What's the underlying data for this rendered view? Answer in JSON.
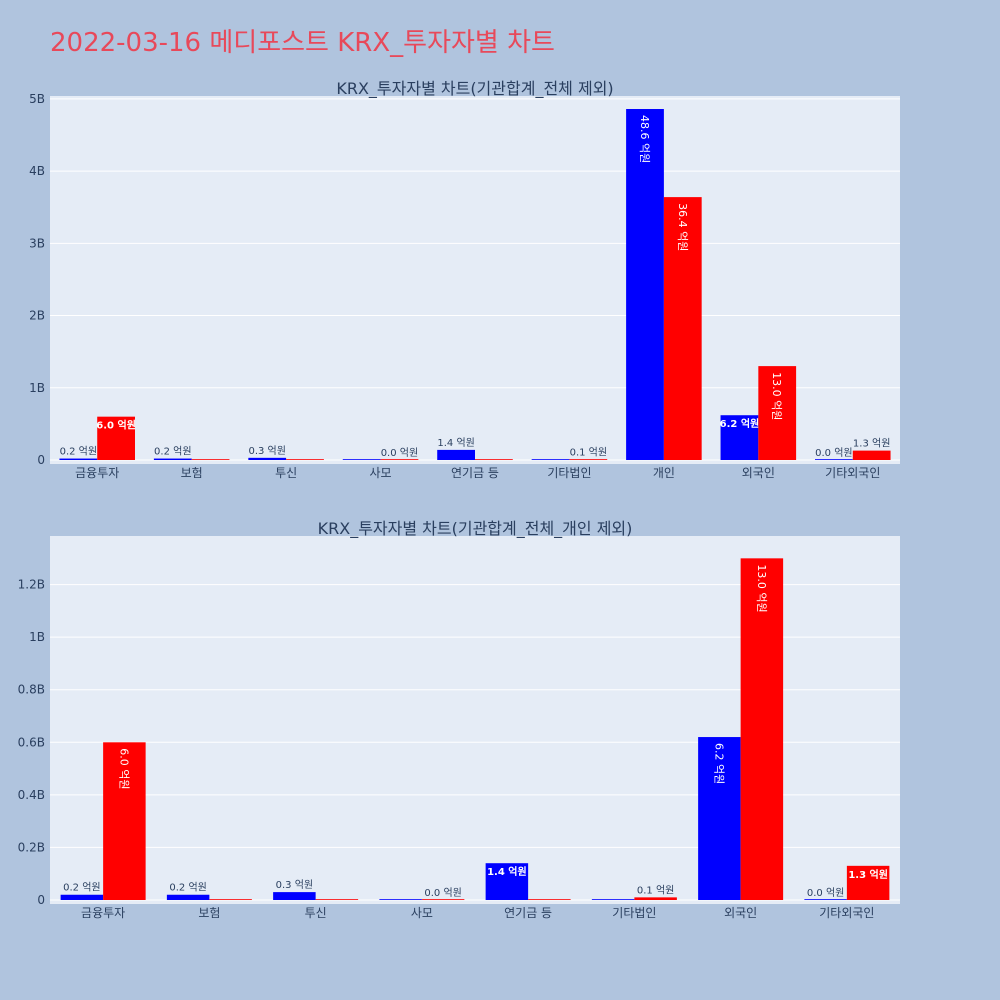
{
  "page": {
    "title": "2022-03-16 메디포스트 KRX_투자자별 차트"
  },
  "colors": {
    "background": "#b0c4de",
    "plot_background": "#e5ecf6",
    "title": "#e8495a",
    "buy": "#0000ff",
    "sell": "#ff0000",
    "text": "#2a3f5f"
  },
  "chart_data": [
    {
      "type": "bar",
      "title": "KRX_투자자별 차트(기관합계_전체 제외)",
      "categories": [
        "금융투자",
        "보험",
        "투신",
        "사모",
        "연기금 등",
        "기타법인",
        "개인",
        "외국인",
        "기타외국인"
      ],
      "series": [
        {
          "color": "#0000ff",
          "values": [
            20000000,
            20000000,
            30000000,
            0,
            140000000,
            0,
            4860000000,
            620000000,
            0
          ],
          "labels": [
            "0.2 억원",
            "0.2 억원",
            "0.3 억원",
            "",
            "1.4 억원",
            "",
            "48.6 억원",
            "6.2 억원",
            "0.0 억원"
          ]
        },
        {
          "color": "#ff0000",
          "values": [
            600000000,
            0,
            0,
            0,
            0,
            10000000,
            3640000000,
            1300000000,
            130000000
          ],
          "labels": [
            "6.0 억원",
            "",
            "",
            "0.0 억원",
            "",
            "0.1 억원",
            "36.4 억원",
            "13.0 억원",
            "1.3 억원"
          ]
        }
      ],
      "ylim": [
        0,
        5040000000
      ],
      "yticks": [
        0,
        1000000000,
        2000000000,
        3000000000,
        4000000000,
        5000000000
      ],
      "ytick_labels": [
        "0",
        "1B",
        "2B",
        "3B",
        "4B",
        "5B"
      ],
      "grid": true
    },
    {
      "type": "bar",
      "title": "KRX_투자자별 차트(기관합계_전체_개인 제외)",
      "categories": [
        "금융투자",
        "보험",
        "투신",
        "사모",
        "연기금 등",
        "기타법인",
        "외국인",
        "기타외국인"
      ],
      "series": [
        {
          "color": "#0000ff",
          "values": [
            20000000,
            20000000,
            30000000,
            0,
            140000000,
            0,
            620000000,
            0
          ],
          "labels": [
            "0.2 억원",
            "0.2 억원",
            "0.3 억원",
            "",
            "1.4 억원",
            "",
            "6.2 억원",
            "0.0 억원"
          ]
        },
        {
          "color": "#ff0000",
          "values": [
            600000000,
            0,
            0,
            0,
            0,
            10000000,
            1300000000,
            130000000
          ],
          "labels": [
            "6.0 억원",
            "",
            "",
            "0.0 억원",
            "",
            "0.1 억원",
            "13.0 억원",
            "1.3 억원"
          ]
        }
      ],
      "ylim": [
        0,
        1385000000
      ],
      "yticks": [
        0,
        200000000,
        400000000,
        600000000,
        800000000,
        1000000000,
        1200000000
      ],
      "ytick_labels": [
        "0",
        "0.2B",
        "0.4B",
        "0.6B",
        "0.8B",
        "1B",
        "1.2B"
      ],
      "grid": true
    }
  ]
}
